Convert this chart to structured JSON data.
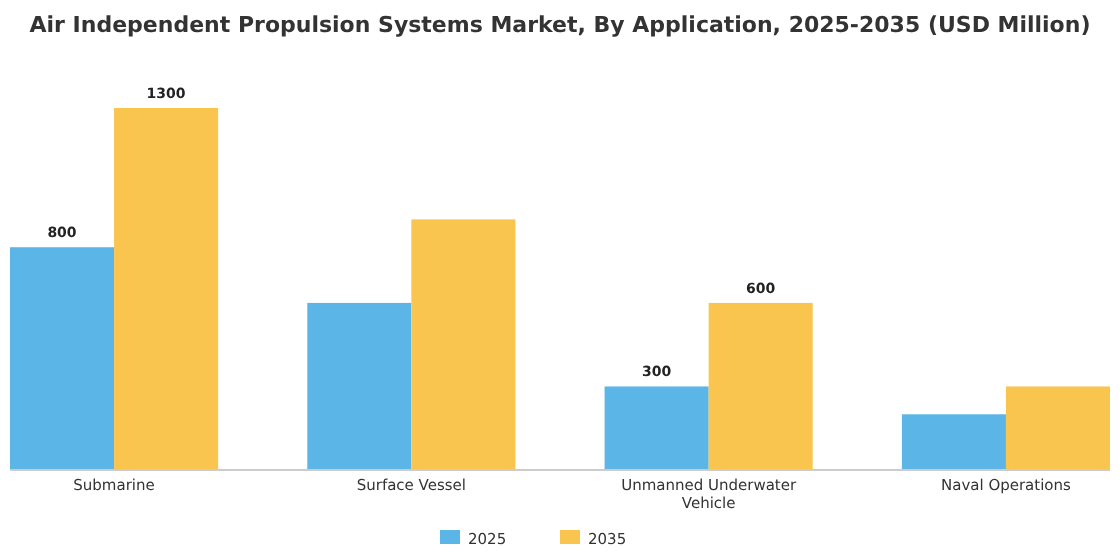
{
  "chart_data": {
    "type": "bar",
    "title": "Air Independent Propulsion Systems Market, By Application, 2025-2035 (USD Million)",
    "categories": [
      "Submarine",
      "Surface Vessel",
      "Unmanned Underwater Vehicle",
      "Naval Operations"
    ],
    "series": [
      {
        "name": "2025",
        "color": "#5bb5e6",
        "values": [
          800,
          600,
          300,
          200
        ],
        "value_labels": [
          "800",
          null,
          "300",
          null
        ]
      },
      {
        "name": "2035",
        "color": "#f9c54e",
        "values": [
          1300,
          900,
          600,
          300
        ],
        "value_labels": [
          "1300",
          null,
          "600",
          null
        ]
      }
    ],
    "legend": "bottom"
  }
}
